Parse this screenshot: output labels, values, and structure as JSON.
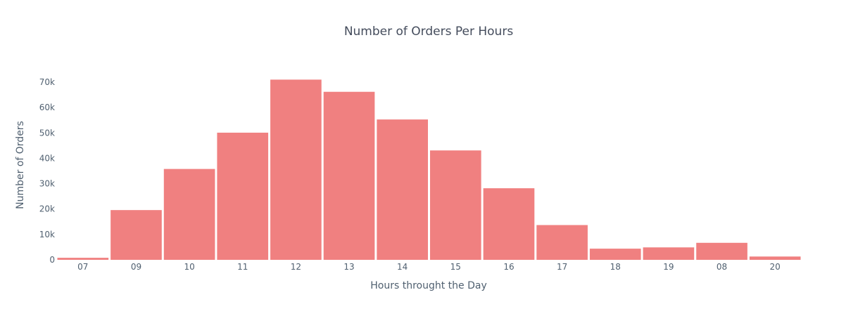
{
  "chart_data": {
    "type": "bar",
    "title": "Number of Orders Per Hours",
    "xlabel": "Hours throught the Day",
    "ylabel": "Number of Orders",
    "categories": [
      "07",
      "09",
      "10",
      "11",
      "12",
      "13",
      "14",
      "15",
      "16",
      "17",
      "18",
      "19",
      "08",
      "20"
    ],
    "values": [
      800,
      19600,
      35800,
      50100,
      71000,
      66200,
      55300,
      43100,
      28200,
      13700,
      4400,
      4900,
      6700,
      1300
    ],
    "ylim": [
      0,
      75000
    ],
    "yticks": [
      0,
      10000,
      20000,
      30000,
      40000,
      50000,
      60000,
      70000
    ],
    "ytick_labels": [
      "0",
      "10k",
      "20k",
      "30k",
      "40k",
      "50k",
      "60k",
      "70k"
    ],
    "grid": false,
    "bar_color": "#f08080"
  }
}
